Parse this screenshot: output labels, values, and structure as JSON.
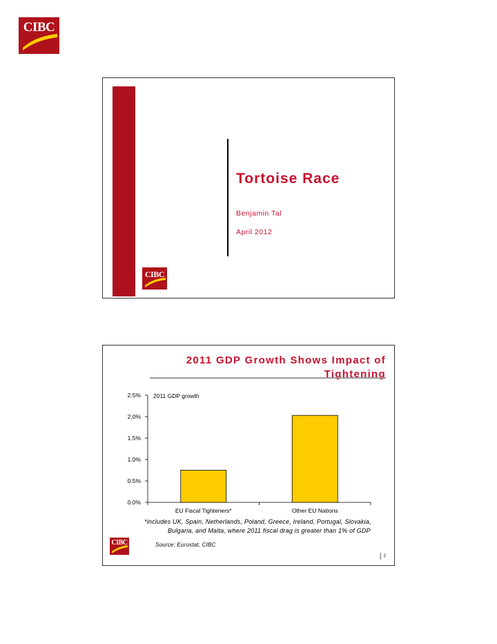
{
  "brand": {
    "logo_text": "CIBC",
    "red": "#b0121b",
    "gold": "#ffcc00"
  },
  "slide1": {
    "title": "Tortoise Race",
    "author": "Benjamin Tal",
    "date": "April 2012"
  },
  "slide2": {
    "title": "2011 GDP Growth Shows Impact of Tightening",
    "footnote_line1": "*includes UK, Spain, Netherlands, Poland, Greece, Ireland, Portugal, Slovakia,",
    "footnote_line2": "Bulgaria, and Malta, where 2011 fiscal drag is greater than 1% of GDP",
    "source": "Source: Eurostat, CIBC",
    "page_number": "2"
  },
  "chart_data": {
    "type": "bar",
    "title": "2011 GDP growth",
    "categories": [
      "EU Fiscal Tighteners*",
      "Other EU Nations"
    ],
    "values": [
      0.75,
      2.03
    ],
    "yticks": [
      "0.0%",
      "0.5%",
      "1.0%",
      "1.5%",
      "2.0%",
      "2.5%"
    ],
    "ylim": [
      0,
      2.5
    ],
    "bar_color": "#ffcc00",
    "grid": false,
    "legend": "none"
  }
}
